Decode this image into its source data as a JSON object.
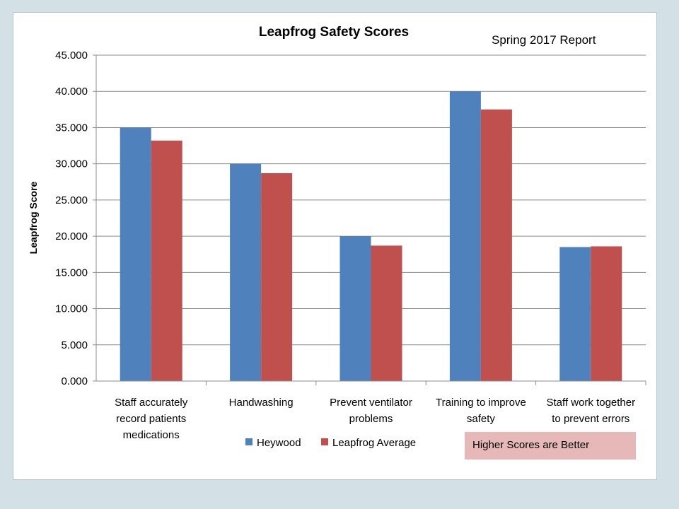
{
  "chart_data": {
    "type": "bar",
    "title": "Leapfrog Safety Scores",
    "subtitle": "Spring 2017 Report",
    "ylabel": "Leapfrog Score",
    "xlabel": "",
    "ylim": [
      0,
      45
    ],
    "yticks": [
      "0.000",
      "5.000",
      "10.000",
      "15.000",
      "20.000",
      "25.000",
      "30.000",
      "35.000",
      "40.000",
      "45.000"
    ],
    "grid": true,
    "legend_position": "bottom",
    "categories": [
      [
        "Staff accurately",
        "record patients",
        "medications"
      ],
      [
        "Handwashing"
      ],
      [
        "Prevent ventilator",
        "problems"
      ],
      [
        "Training to improve",
        "safety"
      ],
      [
        "Staff work together",
        "to prevent errors"
      ]
    ],
    "series": [
      {
        "name": "Heywood",
        "color": "#4f81bd",
        "values": [
          35.0,
          30.0,
          20.0,
          40.0,
          18.5
        ]
      },
      {
        "name": "Leapfrog Average",
        "color": "#c0504d",
        "values": [
          33.2,
          28.7,
          18.7,
          37.5,
          18.6
        ]
      }
    ],
    "annotation": {
      "text": "Higher Scores are Better",
      "color": "#e6b9b8"
    }
  }
}
